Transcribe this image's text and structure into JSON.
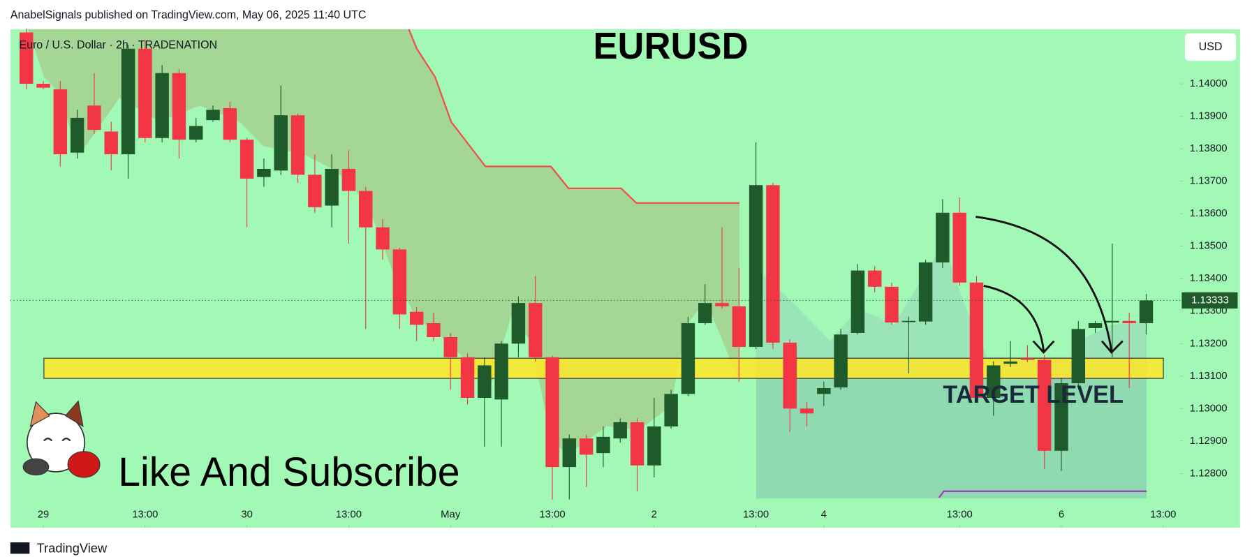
{
  "header": "AnabelSignals published on TradingView.com, May 06, 2025 11:40 UTC",
  "footer": "TradingView",
  "chart_data": {
    "type": "candlestick",
    "title": "EURUSD",
    "symbol": "Euro / U.S. Dollar · 2h · TRADENATION",
    "currency": "USD",
    "annotations": [
      "TARGET LEVEL",
      "Like And Subscribe"
    ],
    "zone": [
      1.13093,
      1.13155
    ],
    "last_price": {
      "value": 1.13333,
      "label": "1.13333"
    },
    "up_color": "#1e5a2a",
    "down_color": "#f23645",
    "ylim": [
      1.12633,
      1.14168
    ],
    "yticks": [
      {
        "value": 1.14,
        "label": "1.14000"
      },
      {
        "value": 1.139,
        "label": "1.13900"
      },
      {
        "value": 1.138,
        "label": "1.13800"
      },
      {
        "value": 1.137,
        "label": "1.13700"
      },
      {
        "value": 1.136,
        "label": "1.13600"
      },
      {
        "value": 1.135,
        "label": "1.13500"
      },
      {
        "value": 1.134,
        "label": "1.13400"
      },
      {
        "value": 1.133,
        "label": "1.13300"
      },
      {
        "value": 1.132,
        "label": "1.13200"
      },
      {
        "value": 1.131,
        "label": "1.13100"
      },
      {
        "value": 1.13,
        "label": "1.13000"
      },
      {
        "value": 1.129,
        "label": "1.12900"
      },
      {
        "value": 1.128,
        "label": "1.12800"
      }
    ],
    "xticks": [
      {
        "value": 1,
        "label": "29"
      },
      {
        "value": 7,
        "label": "13:00"
      },
      {
        "value": 13,
        "label": "30"
      },
      {
        "value": 19,
        "label": "13:00"
      },
      {
        "value": 25,
        "label": "May"
      },
      {
        "value": 31,
        "label": "13:00"
      },
      {
        "value": 37,
        "label": "2"
      },
      {
        "value": 43,
        "label": "13:00"
      },
      {
        "value": 47,
        "label": "4"
      },
      {
        "value": 55,
        "label": "13:00"
      },
      {
        "value": 61,
        "label": "6"
      },
      {
        "value": 67,
        "label": "13:00"
      }
    ],
    "ohlc": [
      [
        1.14158,
        1.1417,
        1.13983,
        1.14
      ],
      [
        1.14,
        1.14008,
        1.13983,
        1.13988
      ],
      [
        1.13983,
        1.14008,
        1.13745,
        1.13783
      ],
      [
        1.13788,
        1.1392,
        1.1377,
        1.13895
      ],
      [
        1.13933,
        1.14033,
        1.13845,
        1.13858
      ],
      [
        1.13853,
        1.13883,
        1.13733,
        1.13783
      ],
      [
        1.13783,
        1.1412,
        1.13708,
        1.14108
      ],
      [
        1.14108,
        1.14133,
        1.1382,
        1.13833
      ],
      [
        1.13833,
        1.14058,
        1.1382,
        1.14033
      ],
      [
        1.14033,
        1.14045,
        1.1377,
        1.13828
      ],
      [
        1.13828,
        1.13895,
        1.1382,
        1.1387
      ],
      [
        1.13888,
        1.13933,
        1.13883,
        1.1392
      ],
      [
        1.13925,
        1.13945,
        1.1382,
        1.13828
      ],
      [
        1.13828,
        1.13833,
        1.13558,
        1.13708
      ],
      [
        1.13713,
        1.1377,
        1.13683,
        1.13738
      ],
      [
        1.13733,
        1.13995,
        1.1372,
        1.13903
      ],
      [
        1.13903,
        1.13908,
        1.13695,
        1.1372
      ],
      [
        1.1372,
        1.13783,
        1.13603,
        1.1362
      ],
      [
        1.13625,
        1.13783,
        1.13558,
        1.13738
      ],
      [
        1.13738,
        1.13795,
        1.13508,
        1.1367
      ],
      [
        1.1367,
        1.13683,
        1.13245,
        1.13558
      ],
      [
        1.13558,
        1.13583,
        1.13458,
        1.1349
      ],
      [
        1.1349,
        1.13495,
        1.13245,
        1.1329
      ],
      [
        1.13298,
        1.13313,
        1.13208,
        1.13258
      ],
      [
        1.13263,
        1.13295,
        1.13208,
        1.1322
      ],
      [
        1.1322,
        1.13233,
        1.13058,
        1.13158
      ],
      [
        1.13158,
        1.1317,
        1.13013,
        1.13033
      ],
      [
        1.13033,
        1.13158,
        1.12883,
        1.13133
      ],
      [
        1.13028,
        1.13208,
        1.12883,
        1.132
      ],
      [
        1.132,
        1.13345,
        1.13158,
        1.13325
      ],
      [
        1.13325,
        1.13408,
        1.13145,
        1.13158
      ],
      [
        1.13158,
        1.13163,
        1.1272,
        1.1282
      ],
      [
        1.1282,
        1.1292,
        1.1272,
        1.12908
      ],
      [
        1.12908,
        1.1292,
        1.12758,
        1.12858
      ],
      [
        1.12863,
        1.12945,
        1.1282,
        1.12913
      ],
      [
        1.12908,
        1.1297,
        1.12895,
        1.12958
      ],
      [
        1.12958,
        1.1297,
        1.12745,
        1.12825
      ],
      [
        1.12825,
        1.13033,
        1.12788,
        1.12945
      ],
      [
        1.12945,
        1.13058,
        1.12938,
        1.13045
      ],
      [
        1.13045,
        1.13283,
        1.13038,
        1.13263
      ],
      [
        1.13263,
        1.13383,
        1.13258,
        1.13325
      ],
      [
        1.13325,
        1.13558,
        1.13308,
        1.13315
      ],
      [
        1.13315,
        1.13433,
        1.13083,
        1.1319
      ],
      [
        1.1319,
        1.1382,
        1.13183,
        1.13688
      ],
      [
        1.13688,
        1.13695,
        1.13183,
        1.13203
      ],
      [
        1.13203,
        1.13213,
        1.12928,
        1.13
      ],
      [
        1.13,
        1.1302,
        1.12945,
        1.12985
      ],
      [
        1.13045,
        1.13083,
        1.13008,
        1.13063
      ],
      [
        1.13065,
        1.13245,
        1.13058,
        1.13228
      ],
      [
        1.13233,
        1.13445,
        1.13228,
        1.13425
      ],
      [
        1.13425,
        1.13438,
        1.13358,
        1.13375
      ],
      [
        1.13375,
        1.13388,
        1.13258,
        1.13265
      ],
      [
        1.13268,
        1.13283,
        1.13108,
        1.1327
      ],
      [
        1.13268,
        1.13458,
        1.13258,
        1.1345
      ],
      [
        1.1345,
        1.13645,
        1.13433,
        1.13603
      ],
      [
        1.13603,
        1.1365,
        1.13378,
        1.13388
      ],
      [
        1.13388,
        1.13408,
        1.1302,
        1.13033
      ],
      [
        1.13033,
        1.13145,
        1.12978,
        1.13133
      ],
      [
        1.13138,
        1.13208,
        1.13128,
        1.13145
      ],
      [
        1.13155,
        1.13195,
        1.13143,
        1.1315
      ],
      [
        1.1315,
        1.13165,
        1.12813,
        1.1287
      ],
      [
        1.1287,
        1.13095,
        1.12808,
        1.13078
      ],
      [
        1.13078,
        1.1327,
        1.1307,
        1.13245
      ],
      [
        1.13248,
        1.1327,
        1.13233,
        1.13263
      ],
      [
        1.13265,
        1.13508,
        1.13158,
        1.1327
      ],
      [
        1.1327,
        1.13295,
        1.13063,
        1.13263
      ],
      [
        1.13263,
        1.13353,
        1.13228,
        1.13333
      ]
    ]
  }
}
